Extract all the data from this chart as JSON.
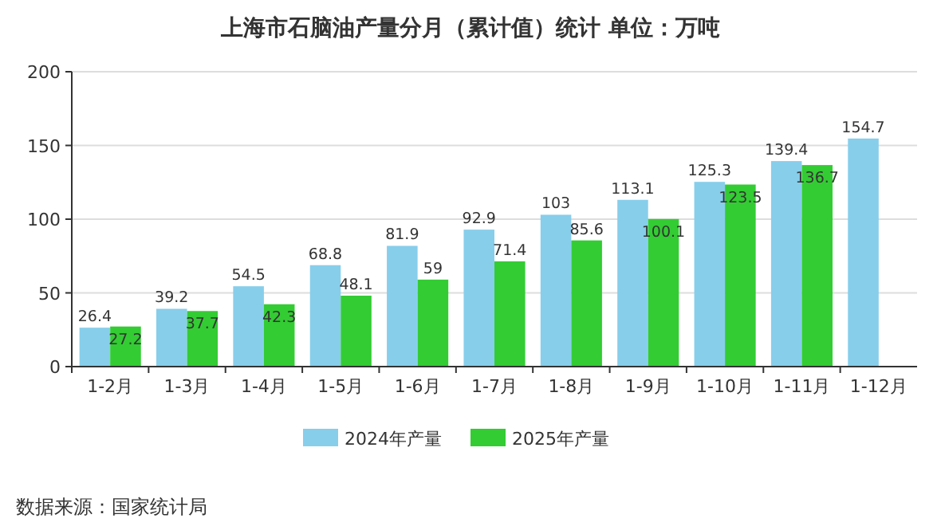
{
  "chart_data": {
    "type": "bar",
    "title": "上海市石脑油产量分月（累计值）统计  单位：万吨",
    "categories": [
      "1-2月",
      "1-3月",
      "1-4月",
      "1-5月",
      "1-6月",
      "1-7月",
      "1-8月",
      "1-9月",
      "1-10月",
      "1-11月",
      "1-12月"
    ],
    "series": [
      {
        "name": "2024年产量",
        "color": "#87ceeb",
        "values": [
          26.4,
          39.2,
          54.5,
          68.8,
          81.9,
          92.9,
          103,
          113.1,
          125.3,
          139.4,
          154.7
        ]
      },
      {
        "name": "2025年产量",
        "color": "#33cc33",
        "values": [
          27.2,
          37.7,
          42.3,
          48.1,
          59,
          71.4,
          85.6,
          100.1,
          123.5,
          136.7,
          null
        ]
      }
    ],
    "ylim": [
      0,
      200
    ],
    "yticks": [
      0,
      50,
      100,
      150,
      200
    ],
    "grid": "y",
    "legend": "bottom",
    "data_labels": true,
    "annotations": [
      "数据来源：国家统计局"
    ]
  }
}
